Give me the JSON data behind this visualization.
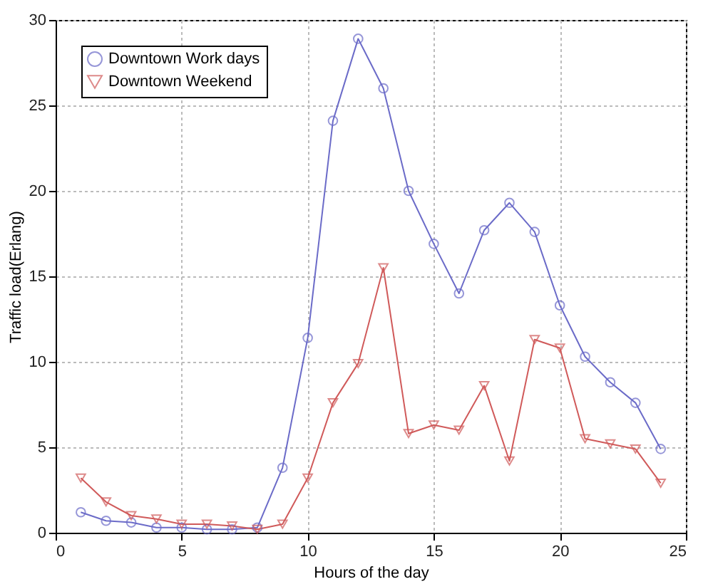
{
  "chart_data": {
    "type": "line",
    "xlabel": "Hours of the day",
    "ylabel": "Traffic load(Erlang)",
    "x": [
      1,
      2,
      3,
      4,
      5,
      6,
      7,
      8,
      9,
      10,
      11,
      12,
      13,
      14,
      15,
      16,
      17,
      18,
      19,
      20,
      21,
      22,
      23,
      24
    ],
    "series": [
      {
        "name": "Downtown Work days",
        "color": "#6b6bc8",
        "marker": "circle",
        "values": [
          1.2,
          0.7,
          0.6,
          0.3,
          0.3,
          0.2,
          0.2,
          0.3,
          3.8,
          11.4,
          24.1,
          28.9,
          26.0,
          20.0,
          16.9,
          14.0,
          17.7,
          19.3,
          17.6,
          13.3,
          10.3,
          8.8,
          7.6,
          4.9
        ]
      },
      {
        "name": "Downtown Weekend",
        "color": "#d05a5a",
        "marker": "triangle",
        "values": [
          3.2,
          1.8,
          1.0,
          0.8,
          0.5,
          0.5,
          0.4,
          0.2,
          0.5,
          3.2,
          7.6,
          9.9,
          15.5,
          5.8,
          6.3,
          6.0,
          8.6,
          4.2,
          11.3,
          10.8,
          5.5,
          5.2,
          4.9,
          2.9
        ]
      }
    ],
    "xlim": [
      0,
      25
    ],
    "xticks": [
      0,
      5,
      10,
      15,
      20,
      25
    ],
    "ylim": [
      0,
      30
    ],
    "yticks": [
      0,
      5,
      10,
      15,
      20,
      25,
      30
    ],
    "grid": true,
    "legend": "top left",
    "line_style": "solid"
  }
}
